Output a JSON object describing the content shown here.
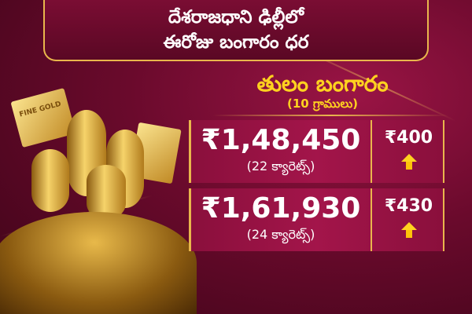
{
  "header": {
    "line1": "దేశరాజధాని ఢిల్లీలో",
    "line2": "ఈరోజు బంగారం ధర"
  },
  "unit": {
    "title": "తులం బంగారం",
    "subtitle": "(10 గ్రాములు)"
  },
  "rows": [
    {
      "price": "₹1,48,450",
      "karat": "(22 క్యారెట్స్)",
      "change": "₹400",
      "direction": "up"
    },
    {
      "price": "₹1,61,930",
      "karat": "(24 క్యారెట్స్)",
      "change": "₹430",
      "direction": "up"
    }
  ],
  "image": {
    "bar_label": "FINE GOLD"
  },
  "colors": {
    "background": "#6a0a2c",
    "accent": "#ffd21f",
    "border": "#e9b64c"
  }
}
